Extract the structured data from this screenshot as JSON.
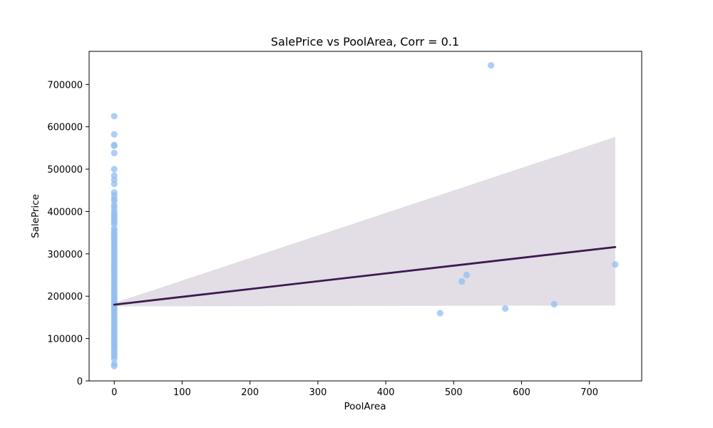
{
  "chart_data": {
    "type": "scatter",
    "title": "SalePrice vs PoolArea, Corr = 0.1",
    "xlabel": "PoolArea",
    "ylabel": "SalePrice",
    "xlim": [
      -37,
      777
    ],
    "ylim": [
      0,
      778000
    ],
    "xticks": [
      0,
      100,
      200,
      300,
      400,
      500,
      600,
      700
    ],
    "yticks": [
      0,
      100000,
      200000,
      300000,
      400000,
      500000,
      600000,
      700000
    ],
    "grid": false,
    "colors": {
      "points": "#92bff0",
      "line": "#3d1a4f",
      "band": "#e3dde6"
    },
    "points": [
      [
        0,
        35000
      ],
      [
        0,
        40000
      ],
      [
        0,
        52000
      ],
      [
        0,
        58000
      ],
      [
        0,
        62000
      ],
      [
        0,
        67000
      ],
      [
        0,
        72000
      ],
      [
        0,
        77000
      ],
      [
        0,
        82000
      ],
      [
        0,
        86000
      ],
      [
        0,
        90000
      ],
      [
        0,
        95000
      ],
      [
        0,
        100000
      ],
      [
        0,
        105000
      ],
      [
        0,
        110000
      ],
      [
        0,
        115000
      ],
      [
        0,
        120000
      ],
      [
        0,
        125000
      ],
      [
        0,
        130000
      ],
      [
        0,
        135000
      ],
      [
        0,
        140000
      ],
      [
        0,
        145000
      ],
      [
        0,
        150000
      ],
      [
        0,
        155000
      ],
      [
        0,
        160000
      ],
      [
        0,
        165000
      ],
      [
        0,
        170000
      ],
      [
        0,
        175000
      ],
      [
        0,
        180000
      ],
      [
        0,
        185000
      ],
      [
        0,
        190000
      ],
      [
        0,
        195000
      ],
      [
        0,
        200000
      ],
      [
        0,
        205000
      ],
      [
        0,
        210000
      ],
      [
        0,
        215000
      ],
      [
        0,
        220000
      ],
      [
        0,
        225000
      ],
      [
        0,
        230000
      ],
      [
        0,
        235000
      ],
      [
        0,
        240000
      ],
      [
        0,
        245000
      ],
      [
        0,
        250000
      ],
      [
        0,
        255000
      ],
      [
        0,
        260000
      ],
      [
        0,
        265000
      ],
      [
        0,
        270000
      ],
      [
        0,
        275000
      ],
      [
        0,
        280000
      ],
      [
        0,
        285000
      ],
      [
        0,
        290000
      ],
      [
        0,
        295000
      ],
      [
        0,
        300000
      ],
      [
        0,
        305000
      ],
      [
        0,
        310000
      ],
      [
        0,
        315000
      ],
      [
        0,
        320000
      ],
      [
        0,
        325000
      ],
      [
        0,
        330000
      ],
      [
        0,
        335000
      ],
      [
        0,
        340000
      ],
      [
        0,
        345000
      ],
      [
        0,
        350000
      ],
      [
        0,
        355000
      ],
      [
        0,
        360000
      ],
      [
        0,
        370000
      ],
      [
        0,
        375000
      ],
      [
        0,
        380000
      ],
      [
        0,
        385000
      ],
      [
        0,
        390000
      ],
      [
        0,
        395000
      ],
      [
        0,
        402000
      ],
      [
        0,
        410000
      ],
      [
        0,
        415000
      ],
      [
        0,
        425000
      ],
      [
        0,
        430000
      ],
      [
        0,
        438000
      ],
      [
        0,
        445000
      ],
      [
        0,
        465000
      ],
      [
        0,
        475000
      ],
      [
        0,
        485000
      ],
      [
        0,
        500000
      ],
      [
        0,
        538000
      ],
      [
        0,
        555000
      ],
      [
        0,
        557000
      ],
      [
        0,
        582000
      ],
      [
        0,
        625000
      ],
      [
        480,
        160000
      ],
      [
        512,
        235000
      ],
      [
        519,
        250000
      ],
      [
        555,
        745000
      ],
      [
        576,
        171000
      ],
      [
        648,
        181000
      ],
      [
        738,
        275000
      ]
    ],
    "regression": {
      "x": [
        0,
        738
      ],
      "y": [
        180000,
        316000
      ],
      "ci_lower": [
        176000,
        178000
      ],
      "ci_upper": [
        184000,
        576000
      ]
    }
  }
}
